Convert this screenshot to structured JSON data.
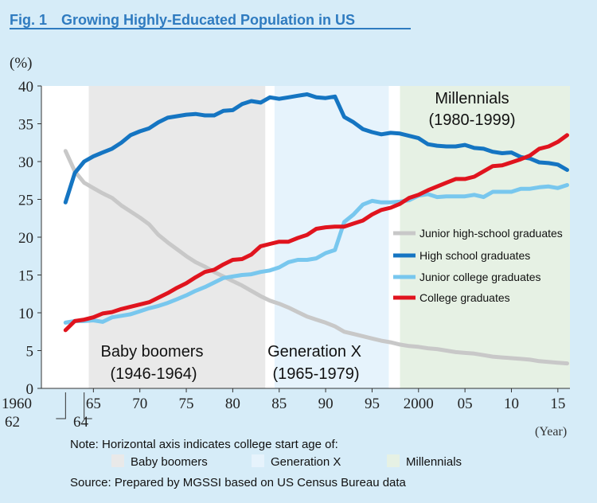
{
  "figure_title": "Fig. 1　Growing Highly-Educated Population in US",
  "y_unit": "(%)",
  "x_unit": "(Year)",
  "colors": {
    "background": "#d6ecf8",
    "plot_background": "#ffffff",
    "title": "#2f7bc0",
    "baby_boomers_band": "#e9e9e9",
    "generation_x_band": "#e6f3fc",
    "millennials_band": "#e6f1e4",
    "junior_high": "#c8c8c8",
    "high_school": "#1575c2",
    "junior_college": "#78c7ee",
    "college": "#e0141e"
  },
  "chart_data": {
    "type": "line",
    "title": "Fig. 1　Growing Highly-Educated Population in US",
    "ylabel": "(%)",
    "xlabel": "(Year)",
    "ylim": [
      0,
      40
    ],
    "xlim": [
      1959.4,
      2016.3
    ],
    "grid": false,
    "legend_position": "right",
    "y_ticks": [
      0,
      5,
      10,
      15,
      20,
      25,
      30,
      35,
      40
    ],
    "y_tick_labels": [
      "0",
      "5",
      "10",
      "15",
      "20",
      "25",
      "30",
      "35",
      "40"
    ],
    "x_ticks": [
      1965,
      1970,
      1975,
      1980,
      1985,
      1990,
      1995,
      2000,
      2005,
      2010,
      2015
    ],
    "x_tick_labels": [
      "65",
      "70",
      "75",
      "80",
      "85",
      "90",
      "95",
      "2000",
      "05",
      "10",
      "15"
    ],
    "x_extra_labels": [
      "1960",
      "62",
      "64"
    ],
    "x": [
      1962,
      1963,
      1964,
      1965,
      1966,
      1967,
      1968,
      1969,
      1970,
      1971,
      1972,
      1973,
      1974,
      1975,
      1976,
      1977,
      1978,
      1979,
      1980,
      1981,
      1982,
      1983,
      1984,
      1985,
      1986,
      1987,
      1988,
      1989,
      1990,
      1991,
      1992,
      1993,
      1994,
      1995,
      1996,
      1997,
      1998,
      1999,
      2000,
      2001,
      2002,
      2003,
      2004,
      2005,
      2006,
      2007,
      2008,
      2009,
      2010,
      2011,
      2012,
      2013,
      2014,
      2015,
      2016
    ],
    "series": [
      {
        "name": "Junior high-school graduates",
        "color": "#c8c8c8",
        "values": [
          31.4,
          28.7,
          27.2,
          26.5,
          25.8,
          25.2,
          24.2,
          23.4,
          22.6,
          21.7,
          20.3,
          19.3,
          18.4,
          17.5,
          16.7,
          16.1,
          15.4,
          14.8,
          14.2,
          13.6,
          12.9,
          12.2,
          11.6,
          11.2,
          10.7,
          10.1,
          9.5,
          9.1,
          8.7,
          8.2,
          7.5,
          7.2,
          6.9,
          6.6,
          6.3,
          6.1,
          5.8,
          5.6,
          5.5,
          5.3,
          5.2,
          5.0,
          4.8,
          4.7,
          4.6,
          4.4,
          4.2,
          4.1,
          4.0,
          3.9,
          3.8,
          3.6,
          3.5,
          3.4,
          3.3
        ]
      },
      {
        "name": "High school graduates",
        "color": "#1575c2",
        "values": [
          24.6,
          28.5,
          30.0,
          30.7,
          31.2,
          31.7,
          32.5,
          33.5,
          34.0,
          34.4,
          35.2,
          35.8,
          36.0,
          36.2,
          36.3,
          36.1,
          36.1,
          36.7,
          36.8,
          37.6,
          38.0,
          37.8,
          38.5,
          38.3,
          38.5,
          38.7,
          38.9,
          38.5,
          38.4,
          38.6,
          35.9,
          35.2,
          34.3,
          33.9,
          33.6,
          33.8,
          33.7,
          33.4,
          33.1,
          32.3,
          32.1,
          32.0,
          32.0,
          32.2,
          31.8,
          31.7,
          31.3,
          31.1,
          31.2,
          30.6,
          30.4,
          29.9,
          29.8,
          29.6,
          28.9
        ]
      },
      {
        "name": "Junior college graduates",
        "color": "#78c7ee",
        "values": [
          8.7,
          8.9,
          8.9,
          9.0,
          8.8,
          9.4,
          9.6,
          9.8,
          10.2,
          10.6,
          10.9,
          11.3,
          11.8,
          12.3,
          12.9,
          13.4,
          14.0,
          14.6,
          14.8,
          15.0,
          15.1,
          15.4,
          15.6,
          16.0,
          16.7,
          17.0,
          17.0,
          17.2,
          17.9,
          18.3,
          22.0,
          23.0,
          24.3,
          24.8,
          24.6,
          24.6,
          24.7,
          24.9,
          25.5,
          25.7,
          25.3,
          25.4,
          25.4,
          25.4,
          25.6,
          25.3,
          26.0,
          26.0,
          26.0,
          26.4,
          26.4,
          26.6,
          26.7,
          26.5,
          26.9
        ]
      },
      {
        "name": "College graduates",
        "color": "#e0141e",
        "values": [
          7.7,
          8.9,
          9.1,
          9.4,
          9.9,
          10.1,
          10.5,
          10.8,
          11.1,
          11.4,
          12.0,
          12.6,
          13.3,
          13.9,
          14.7,
          15.4,
          15.7,
          16.4,
          17.0,
          17.1,
          17.7,
          18.8,
          19.1,
          19.4,
          19.4,
          19.9,
          20.3,
          21.1,
          21.3,
          21.4,
          21.4,
          21.8,
          22.2,
          23.0,
          23.6,
          23.9,
          24.4,
          25.2,
          25.6,
          26.2,
          26.7,
          27.2,
          27.7,
          27.7,
          28.0,
          28.7,
          29.4,
          29.5,
          29.9,
          30.3,
          30.8,
          31.7,
          32.0,
          32.6,
          33.5
        ]
      }
    ],
    "bands": [
      {
        "name": "Baby boomers",
        "range": "(1946-1964)",
        "from": 1964.5,
        "to": 1983.5
      },
      {
        "name": "Generation X",
        "range": "(1965-1979)",
        "from": 1984.5,
        "to": 1996.8
      },
      {
        "name": "Millennials",
        "range": "(1980-1999)",
        "from": 1998.0,
        "to": 2016.3
      }
    ]
  },
  "notes": {
    "line1": "Note: Horizontal axis indicates college start age of:",
    "legend": [
      "Baby boomers",
      "Generation X",
      "Millennials"
    ],
    "source": "Source: Prepared by MGSSI based on US Census Bureau data"
  }
}
